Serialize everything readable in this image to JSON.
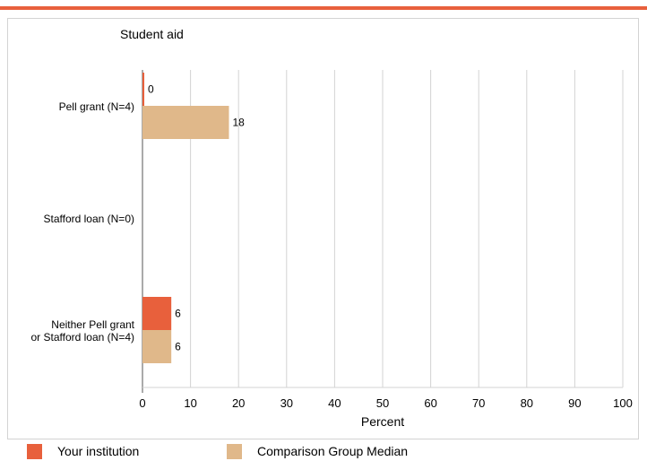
{
  "colors": {
    "accent_rule": "#e8603c",
    "your_institution": "#e8603c",
    "comparison_median": "#e0b88a",
    "grid": "#d3d3d3",
    "axis": "#555555"
  },
  "chart_data": {
    "type": "bar",
    "orientation": "horizontal",
    "title": "Student aid",
    "xlabel": "Percent",
    "xlim": [
      0,
      100
    ],
    "xticks": [
      0,
      10,
      20,
      30,
      40,
      50,
      60,
      70,
      80,
      90,
      100
    ],
    "grid": true,
    "legend_position": "bottom",
    "categories": [
      {
        "lines": [
          "Pell grant  (N=4)"
        ]
      },
      {
        "lines": [
          "Stafford loan (N=0)"
        ]
      },
      {
        "lines": [
          "Neither Pell grant",
          "or Stafford loan (N=4)"
        ]
      }
    ],
    "series": [
      {
        "name": "Your institution",
        "color_key": "your_institution",
        "values": [
          0,
          null,
          6
        ],
        "labels": [
          "0",
          "",
          "6"
        ]
      },
      {
        "name": "Comparison Group Median",
        "color_key": "comparison_median",
        "values": [
          18,
          null,
          6
        ],
        "labels": [
          "18",
          "",
          "6"
        ]
      }
    ]
  }
}
